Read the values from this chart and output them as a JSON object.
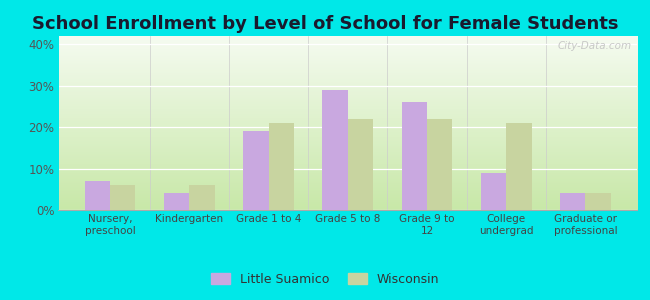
{
  "title": "School Enrollment by Level of School for Female Students",
  "categories": [
    "Nursery,\npreschool",
    "Kindergarten",
    "Grade 1 to 4",
    "Grade 5 to 8",
    "Grade 9 to\n12",
    "College\nundergrad",
    "Graduate or\nprofessional"
  ],
  "little_suamico": [
    7.0,
    4.0,
    19.0,
    29.0,
    26.0,
    9.0,
    4.0
  ],
  "wisconsin": [
    6.0,
    6.0,
    21.0,
    22.0,
    22.0,
    21.0,
    4.0
  ],
  "bar_color_ls": "#c9a8e0",
  "bar_color_wi": "#c8d4a0",
  "background_color_outer": "#00e8e8",
  "gradient_top": "#f5fbf0",
  "gradient_bottom": "#c8e8a8",
  "title_fontsize": 13,
  "ylim": [
    0,
    42
  ],
  "yticks": [
    0,
    10,
    20,
    30,
    40
  ],
  "ytick_labels": [
    "0%",
    "10%",
    "20%",
    "30%",
    "40%"
  ],
  "legend_labels": [
    "Little Suamico",
    "Wisconsin"
  ],
  "bar_width": 0.32,
  "watermark_text": "City-Data.com"
}
